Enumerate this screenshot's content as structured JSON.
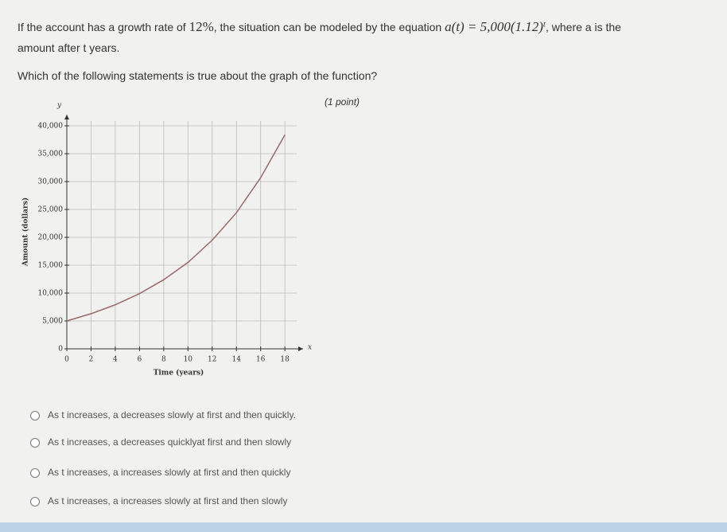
{
  "question": {
    "intro": "If the account has a growth rate of",
    "rate": "12%",
    "mid": ", the situation can be modeled by the equation",
    "equation": "a(t) = 5,000(1.12)",
    "exponent": "t",
    "tail": ", where a is the",
    "line2": "amount after t years.",
    "prompt": "Which of the following statements is true about the graph of the function?",
    "points": "(1 point)"
  },
  "chart_data": {
    "type": "line",
    "x_label": "Time (years)",
    "y_label": "Amount (dollars)",
    "x_symbol": "x",
    "y_symbol": "y",
    "x": [
      0,
      2,
      4,
      6,
      8,
      10,
      12,
      14,
      16,
      18
    ],
    "values": [
      5000,
      6300,
      7900,
      9900,
      12400,
      15500,
      19500,
      24400,
      30700,
      38400
    ],
    "color": "#9a6a6a",
    "xlim": [
      0,
      19.5
    ],
    "ylim": [
      0,
      42000
    ],
    "xticks": [
      0,
      2,
      4,
      6,
      8,
      10,
      12,
      14,
      16,
      18
    ],
    "yticks": [
      0,
      {
        "value": 5000,
        "label": "5,000"
      },
      {
        "value": 10000,
        "label": "10,000"
      },
      {
        "value": 15000,
        "label": "15,000"
      },
      {
        "value": 20000,
        "label": "20,000"
      },
      {
        "value": 25000,
        "label": "25,000"
      },
      {
        "value": 30000,
        "label": "30,000"
      },
      {
        "value": 35000,
        "label": "35,000"
      },
      {
        "value": 40000,
        "label": "40,000"
      }
    ],
    "grid": true
  },
  "options": [
    "As t increases, a decreases slowly at first and then quickly.",
    "As t increases, a decreases quicklyat first and then slowly",
    "As t increases, a increases slowly at first and then quickly",
    "As t increases, a increases slowly at first and then slowly"
  ]
}
